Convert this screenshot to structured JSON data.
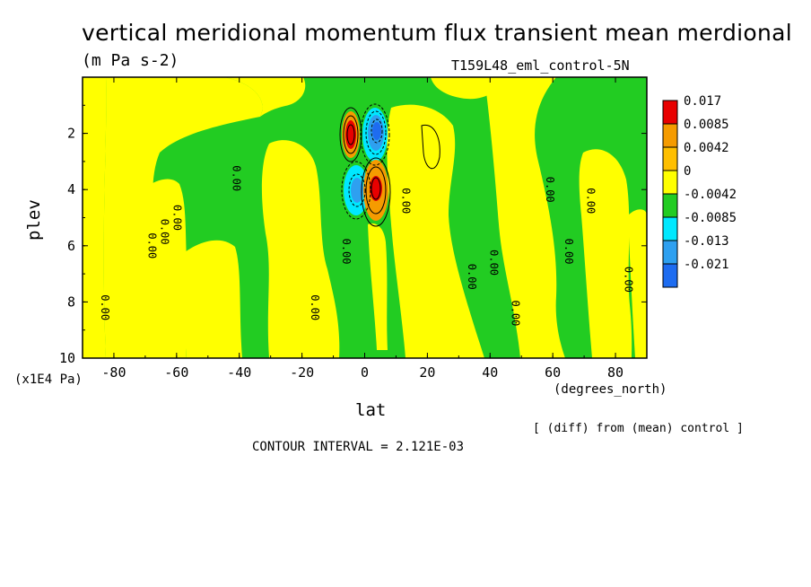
{
  "title": "vertical meridional momentum flux transient mean merdional",
  "units": "(m Pa s-2)",
  "experiment": "T159L48_eml_control-5N",
  "footer_note": "[ (diff) from (mean) control ]",
  "contour_interval": "CONTOUR INTERVAL = 2.121E-03",
  "colors": {
    "red": "#e80000",
    "orange": "#f59b00",
    "yellow": "#ffff00",
    "green": "#22cc22",
    "cyan": "#00e8ff",
    "mid_blue": "#2ea0f0",
    "blue": "#1e6cf0",
    "dark_blue": "#1e3cf0"
  },
  "chart_data": {
    "type": "heatmap",
    "xlabel": "lat",
    "xunit": "(degrees_north)",
    "ylabel": "plev",
    "yunit": "(x1E4 Pa)",
    "xlim": [
      -90,
      90
    ],
    "ylim": [
      10,
      0
    ],
    "x_ticks": [
      -80,
      -60,
      -40,
      -20,
      0,
      20,
      40,
      60,
      80
    ],
    "y_ticks": [
      2,
      4,
      6,
      8,
      10
    ],
    "legend": {
      "placement": "right",
      "levels": [
        "0.017",
        "0.0085",
        "0.0042",
        "0",
        "-0.0042",
        "-0.0085",
        "-0.013",
        "-0.021"
      ],
      "colors": [
        "#e80000",
        "#f59b00",
        "#ffbf00",
        "#ffff00",
        "#22cc22",
        "#00e8ff",
        "#2ea0f0",
        "#1e6cf0"
      ]
    },
    "contour_labels": [
      {
        "text": "0.00",
        "lat": -84,
        "plev": 8.2
      },
      {
        "text": "0.00",
        "lat": -69,
        "plev": 6.0
      },
      {
        "text": "0.00",
        "lat": -65,
        "plev": 5.5
      },
      {
        "text": "0.00",
        "lat": -61,
        "plev": 5.0
      },
      {
        "text": "0.00",
        "lat": -42,
        "plev": 3.6
      },
      {
        "text": "0.00",
        "lat": -17,
        "plev": 8.2
      },
      {
        "text": "0.00",
        "lat": -7,
        "plev": 6.2
      },
      {
        "text": "0.00",
        "lat": 12,
        "plev": 4.4
      },
      {
        "text": "0.00",
        "lat": 33,
        "plev": 7.1
      },
      {
        "text": "0.00",
        "lat": 40,
        "plev": 6.6
      },
      {
        "text": "0.00",
        "lat": 47,
        "plev": 8.4
      },
      {
        "text": "0.00",
        "lat": 58,
        "plev": 4.0
      },
      {
        "text": "0.00",
        "lat": 64,
        "plev": 6.2
      },
      {
        "text": "0.00",
        "lat": 71,
        "plev": 4.4
      },
      {
        "text": "0.00",
        "lat": 83,
        "plev": 7.2
      }
    ]
  }
}
